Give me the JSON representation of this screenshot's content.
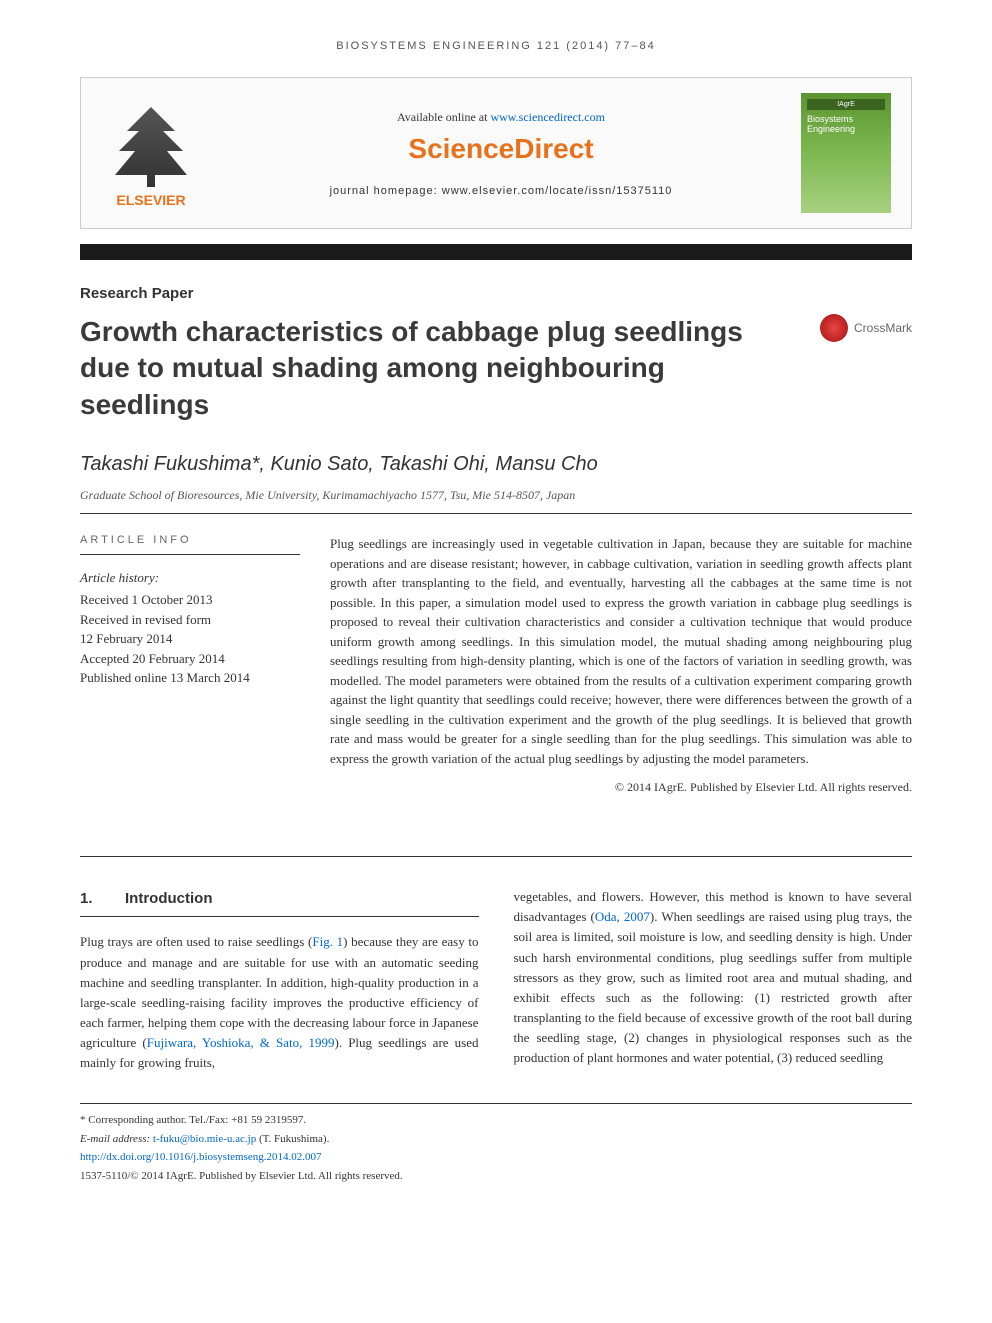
{
  "running_header": "BIOSYSTEMS ENGINEERING 121 (2014) 77–84",
  "header": {
    "available_prefix": "Available online at ",
    "available_url": "www.sciencedirect.com",
    "sd_brand": "ScienceDirect",
    "homepage_label": "journal homepage: www.elsevier.com/locate/issn/15375110",
    "publisher_name": "ELSEVIER",
    "cover_top": "IAgrE",
    "cover_title": "Biosystems Engineering"
  },
  "article_type": "Research Paper",
  "title": "Growth characteristics of cabbage plug seedlings due to mutual shading among neighbouring seedlings",
  "crossmark_label": "CrossMark",
  "authors": "Takashi Fukushima*, Kunio Sato, Takashi Ohi, Mansu Cho",
  "affiliation": "Graduate School of Bioresources, Mie University, Kurimamachiyacho 1577, Tsu, Mie 514-8507, Japan",
  "info_heading": "ARTICLE INFO",
  "history": {
    "label": "Article history:",
    "received": "Received 1 October 2013",
    "revised1": "Received in revised form",
    "revised2": "12 February 2014",
    "accepted": "Accepted 20 February 2014",
    "published": "Published online 13 March 2014"
  },
  "abstract": "Plug seedlings are increasingly used in vegetable cultivation in Japan, because they are suitable for machine operations and are disease resistant; however, in cabbage cultivation, variation in seedling growth affects plant growth after transplanting to the field, and eventually, harvesting all the cabbages at the same time is not possible. In this paper, a simulation model used to express the growth variation in cabbage plug seedlings is proposed to reveal their cultivation characteristics and consider a cultivation technique that would produce uniform growth among seedlings. In this simulation model, the mutual shading among neighbouring plug seedlings resulting from high-density planting, which is one of the factors of variation in seedling growth, was modelled. The model parameters were obtained from the results of a cultivation experiment comparing growth against the light quantity that seedlings could receive; however, there were differences between the growth of a single seedling in the cultivation experiment and the growth of the plug seedlings. It is believed that growth rate and mass would be greater for a single seedling than for the plug seedlings. This simulation was able to express the growth variation of the actual plug seedlings by adjusting the model parameters.",
  "abstract_copyright": "© 2014 IAgrE. Published by Elsevier Ltd. All rights reserved.",
  "section1": {
    "num": "1.",
    "title": "Introduction"
  },
  "body": {
    "col1_p1a": "Plug trays are often used to raise seedlings (",
    "col1_fig": "Fig. 1",
    "col1_p1b": ") because they are easy to produce and manage and are suitable for use with an automatic seeding machine and seedling transplanter. In addition, high-quality production in a large-scale seedling-raising facility improves the productive efficiency of each farmer, helping them cope with the decreasing labour force in Japanese agriculture (",
    "col1_ref1": "Fujiwara, Yoshioka, & Sato, 1999",
    "col1_p1c": "). Plug seedlings are used mainly for growing fruits,",
    "col2_p1a": "vegetables, and flowers. However, this method is known to have several disadvantages (",
    "col2_ref1": "Oda, 2007",
    "col2_p1b": "). When seedlings are raised using plug trays, the soil area is limited, soil moisture is low, and seedling density is high. Under such harsh environmental conditions, plug seedlings suffer from multiple stressors as they grow, such as limited root area and mutual shading, and exhibit effects such as the following: (1) restricted growth after transplanting to the field because of excessive growth of the root ball during the seedling stage, (2) changes in physiological responses such as the production of plant hormones and water potential, (3) reduced seedling"
  },
  "footnotes": {
    "corr": "* Corresponding author. Tel./Fax: +81 59 2319597.",
    "email_label": "E-mail address: ",
    "email": "t-fuku@bio.mie-u.ac.jp",
    "email_suffix": " (T. Fukushima).",
    "doi": "http://dx.doi.org/10.1016/j.biosystemseng.2014.02.007",
    "issn_copy": "1537-5110/© 2014 IAgrE. Published by Elsevier Ltd. All rights reserved."
  },
  "colors": {
    "accent_orange": "#e9711c",
    "link_blue": "#0066cc",
    "cover_green": "#5b9430",
    "text": "#333333",
    "bar": "#1a1a1a"
  }
}
